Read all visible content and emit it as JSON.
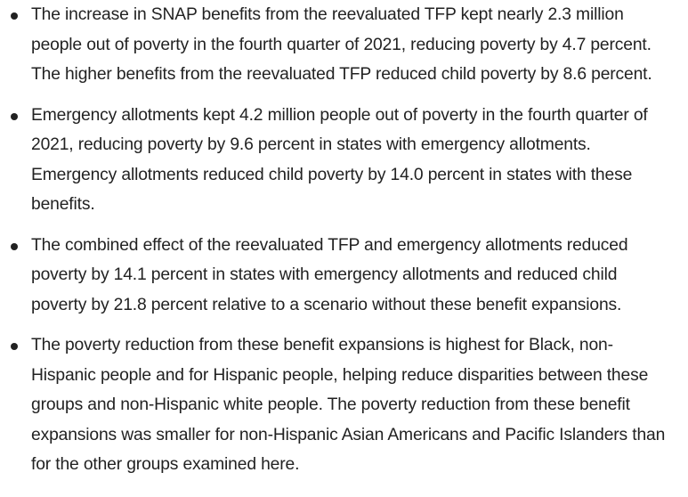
{
  "bullets": [
    {
      "lines": [
        "The increase in SNAP benefits from the reevaluated TFP kept nearly 2.3 million",
        "people out of poverty in the fourth quarter of 2021, reducing poverty by 4.7 percent.",
        "The higher benefits from the reevaluated TFP reduced child poverty by 8.6 percent."
      ]
    },
    {
      "lines": [
        "Emergency allotments kept 4.2 million people out of poverty in the fourth quarter of",
        "2021, reducing poverty by 9.6 percent in states with emergency allotments.",
        "Emergency allotments reduced child poverty by 14.0 percent in states with these",
        "benefits."
      ]
    },
    {
      "lines": [
        "The combined effect of the reevaluated TFP and emergency allotments reduced",
        "poverty by 14.1 percent in states with emergency allotments and reduced child",
        "poverty by 21.8 percent relative to a scenario without these benefit expansions."
      ]
    },
    {
      "lines": [
        "The poverty reduction from these benefit expansions is highest for Black, non-",
        "Hispanic people and for Hispanic people, helping reduce disparities between these",
        "groups and non-Hispanic white people. The poverty reduction from these benefit",
        "expansions was smaller for non-Hispanic Asian Americans and Pacific Islanders than",
        "for the other groups examined here."
      ]
    }
  ]
}
